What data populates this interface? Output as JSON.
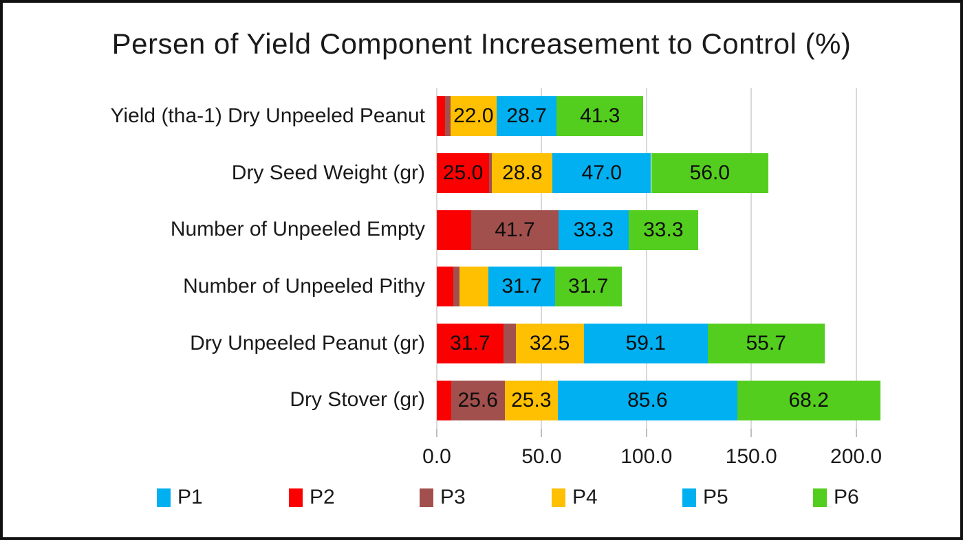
{
  "chart_data": {
    "type": "bar",
    "subtype": "horizontal-stacked",
    "title": "Persen of Yield Component Increasement to Control (%)",
    "categories": [
      "Yield (tha-1) Dry Unpeeled Peanut",
      "Dry Seed Weight (gr)",
      "Number of Unpeeled Empty",
      "Number of Unpeeled Pithy",
      "Dry Unpeeled Peanut (gr)",
      "Dry Stover (gr)"
    ],
    "series": [
      {
        "name": "P1",
        "color": "#00b0f0",
        "values": [
          0,
          0,
          0,
          0,
          0,
          0
        ],
        "labels": [
          "",
          "",
          "",
          "",
          "",
          ""
        ]
      },
      {
        "name": "P2",
        "color": "#fb0000",
        "values": [
          4.1,
          25.0,
          16.4,
          7.8,
          31.7,
          6.8
        ],
        "labels": [
          "",
          "25.0",
          "",
          "",
          "31.7",
          ""
        ]
      },
      {
        "name": "P3",
        "color": "#a1504d",
        "values": [
          2.4,
          1.4,
          41.7,
          3.1,
          5.9,
          25.6
        ],
        "labels": [
          "",
          "",
          "41.7",
          "",
          "",
          "25.6"
        ]
      },
      {
        "name": "P4",
        "color": "#fec001",
        "values": [
          22.0,
          28.8,
          0,
          13.8,
          32.5,
          25.3
        ],
        "labels": [
          "22.0",
          "28.8",
          "",
          "",
          "32.5",
          "25.3"
        ]
      },
      {
        "name": "P5",
        "color": "#00b0f0",
        "values": [
          28.7,
          47.0,
          33.3,
          31.7,
          59.1,
          85.6
        ],
        "labels": [
          "28.7",
          "47.0",
          "33.3",
          "31.7",
          "59.1",
          "85.6"
        ]
      },
      {
        "name": "P6",
        "color": "#54ce1e",
        "values": [
          41.3,
          56.0,
          33.3,
          31.7,
          55.7,
          68.2
        ],
        "labels": [
          "41.3",
          "56.0",
          "33.3",
          "31.7",
          "55.7",
          "68.2"
        ]
      }
    ],
    "x_axis": {
      "tick_labels": [
        "0.0",
        "50.0",
        "100.0",
        "150.0",
        "200.0"
      ],
      "tick_values": [
        0,
        50,
        100,
        150,
        200
      ],
      "axis_max": 250,
      "gridlines": [
        0,
        50,
        100,
        150,
        200,
        250
      ],
      "grid_color": "#d9d9d9"
    },
    "legend": {
      "position": "bottom",
      "entries": [
        "P1",
        "P2",
        "P3",
        "P4",
        "P5",
        "P6"
      ]
    }
  }
}
